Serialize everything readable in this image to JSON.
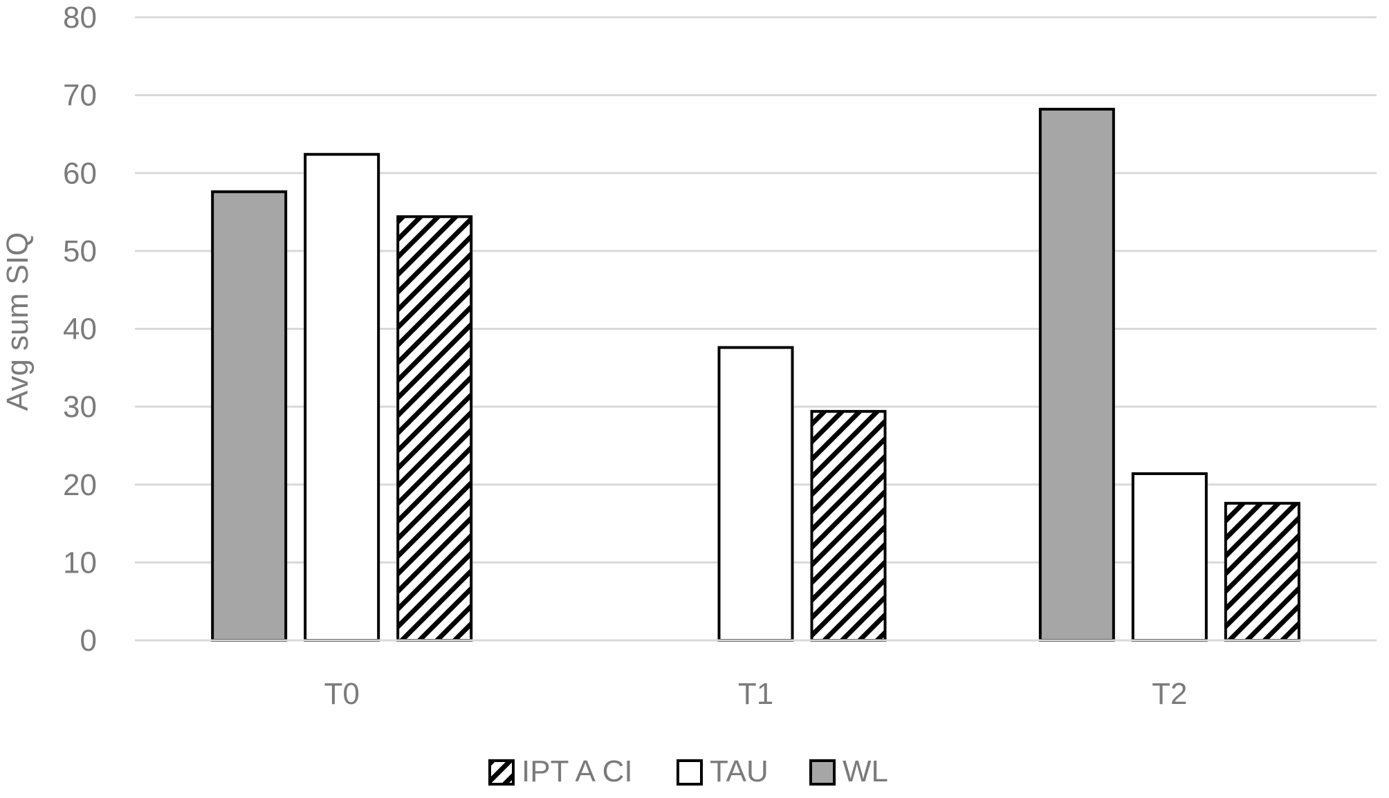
{
  "chart_data": {
    "type": "bar",
    "title": "",
    "xlabel": "",
    "ylabel": "Avg sum SIQ",
    "ylim": [
      0,
      80
    ],
    "yticks": [
      0,
      10,
      20,
      30,
      40,
      50,
      60,
      70,
      80
    ],
    "grid": true,
    "legend_position": "bottom",
    "categories": [
      "T0",
      "T1",
      "T2"
    ],
    "series": [
      {
        "name": "WL",
        "fill": "gray",
        "color": "#a6a6a6",
        "values": [
          57.6,
          0,
          68.2
        ]
      },
      {
        "name": "TAU",
        "fill": "white",
        "color": "#ffffff",
        "values": [
          62.4,
          37.6,
          21.4
        ]
      },
      {
        "name": "IPT A CI",
        "fill": "hatched",
        "color": "#000000",
        "values": [
          54.4,
          29.4,
          17.6
        ]
      }
    ],
    "legend_order": [
      "IPT A CI",
      "TAU",
      "WL"
    ]
  }
}
